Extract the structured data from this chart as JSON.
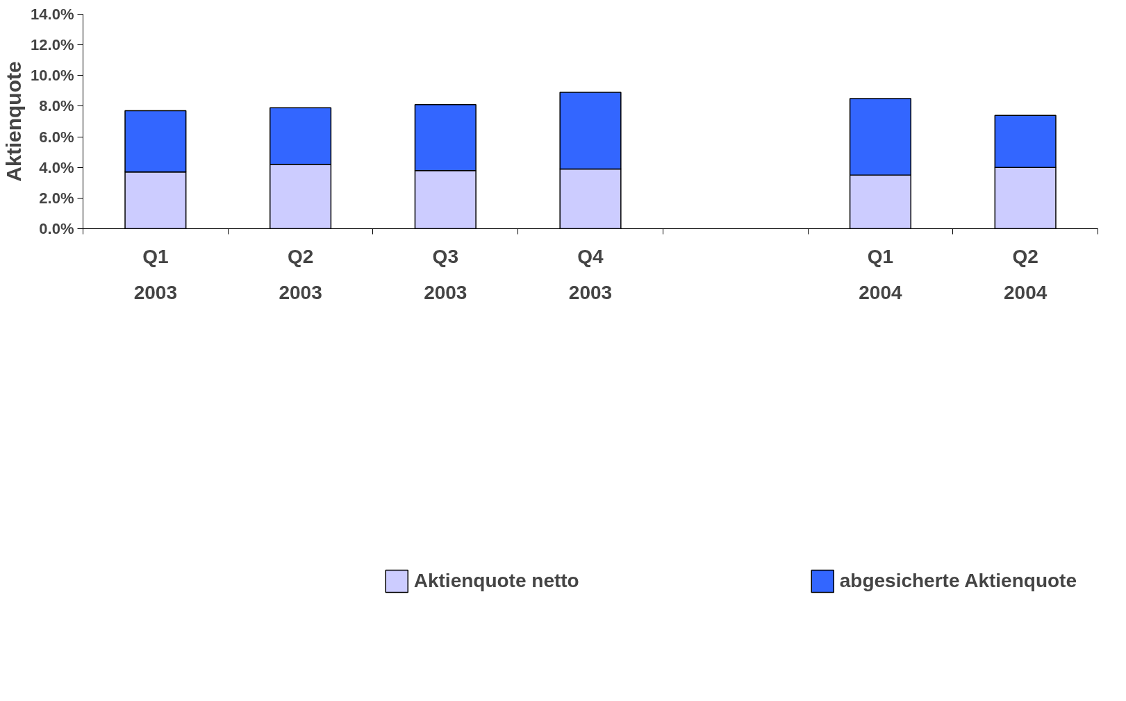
{
  "chart_data": {
    "type": "bar",
    "stacked": true,
    "ylabel": "Aktienquote",
    "categories": [
      "Q1\n2003",
      "Q2\n2003",
      "Q3\n2003",
      "Q4\n2003",
      null,
      "Q1\n2004",
      "Q2\n2004"
    ],
    "series": [
      {
        "name": "Aktienquote netto",
        "color": "#ccccff",
        "values": [
          3.7,
          4.2,
          3.8,
          3.9,
          null,
          3.5,
          4.0
        ]
      },
      {
        "name": "abgesicherte Aktienquote",
        "color": "#3366ff",
        "values": [
          4.0,
          3.7,
          4.3,
          5.0,
          null,
          5.0,
          3.4
        ]
      }
    ],
    "ylim": [
      0,
      14
    ],
    "yticks": [
      {
        "value": 0,
        "label": "0.0%"
      },
      {
        "value": 2,
        "label": "2.0%"
      },
      {
        "value": 4,
        "label": "4.0%"
      },
      {
        "value": 6,
        "label": "6.0%"
      },
      {
        "value": 8,
        "label": "8.0%"
      },
      {
        "value": 10,
        "label": "10.0%"
      },
      {
        "value": 12,
        "label": "12.0%"
      },
      {
        "value": 14,
        "label": "14.0%"
      }
    ],
    "grid": false,
    "legend": "bottom"
  }
}
